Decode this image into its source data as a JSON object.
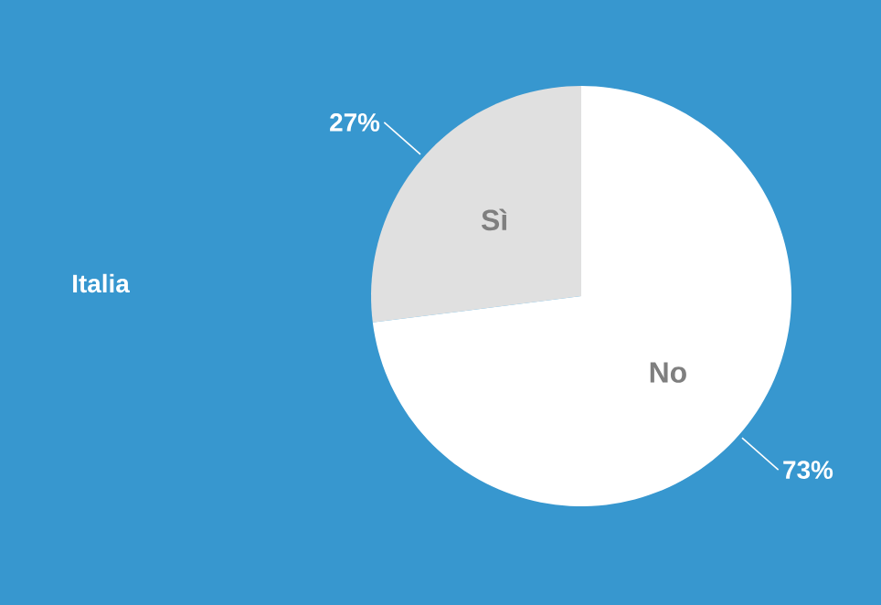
{
  "chart_data": {
    "type": "pie",
    "title": "Italia",
    "categories": [
      "Sì",
      "No"
    ],
    "values": [
      27,
      73
    ],
    "colors": [
      "#e0e0e0",
      "#ffffff"
    ],
    "value_labels": [
      "27%",
      "73%"
    ]
  }
}
